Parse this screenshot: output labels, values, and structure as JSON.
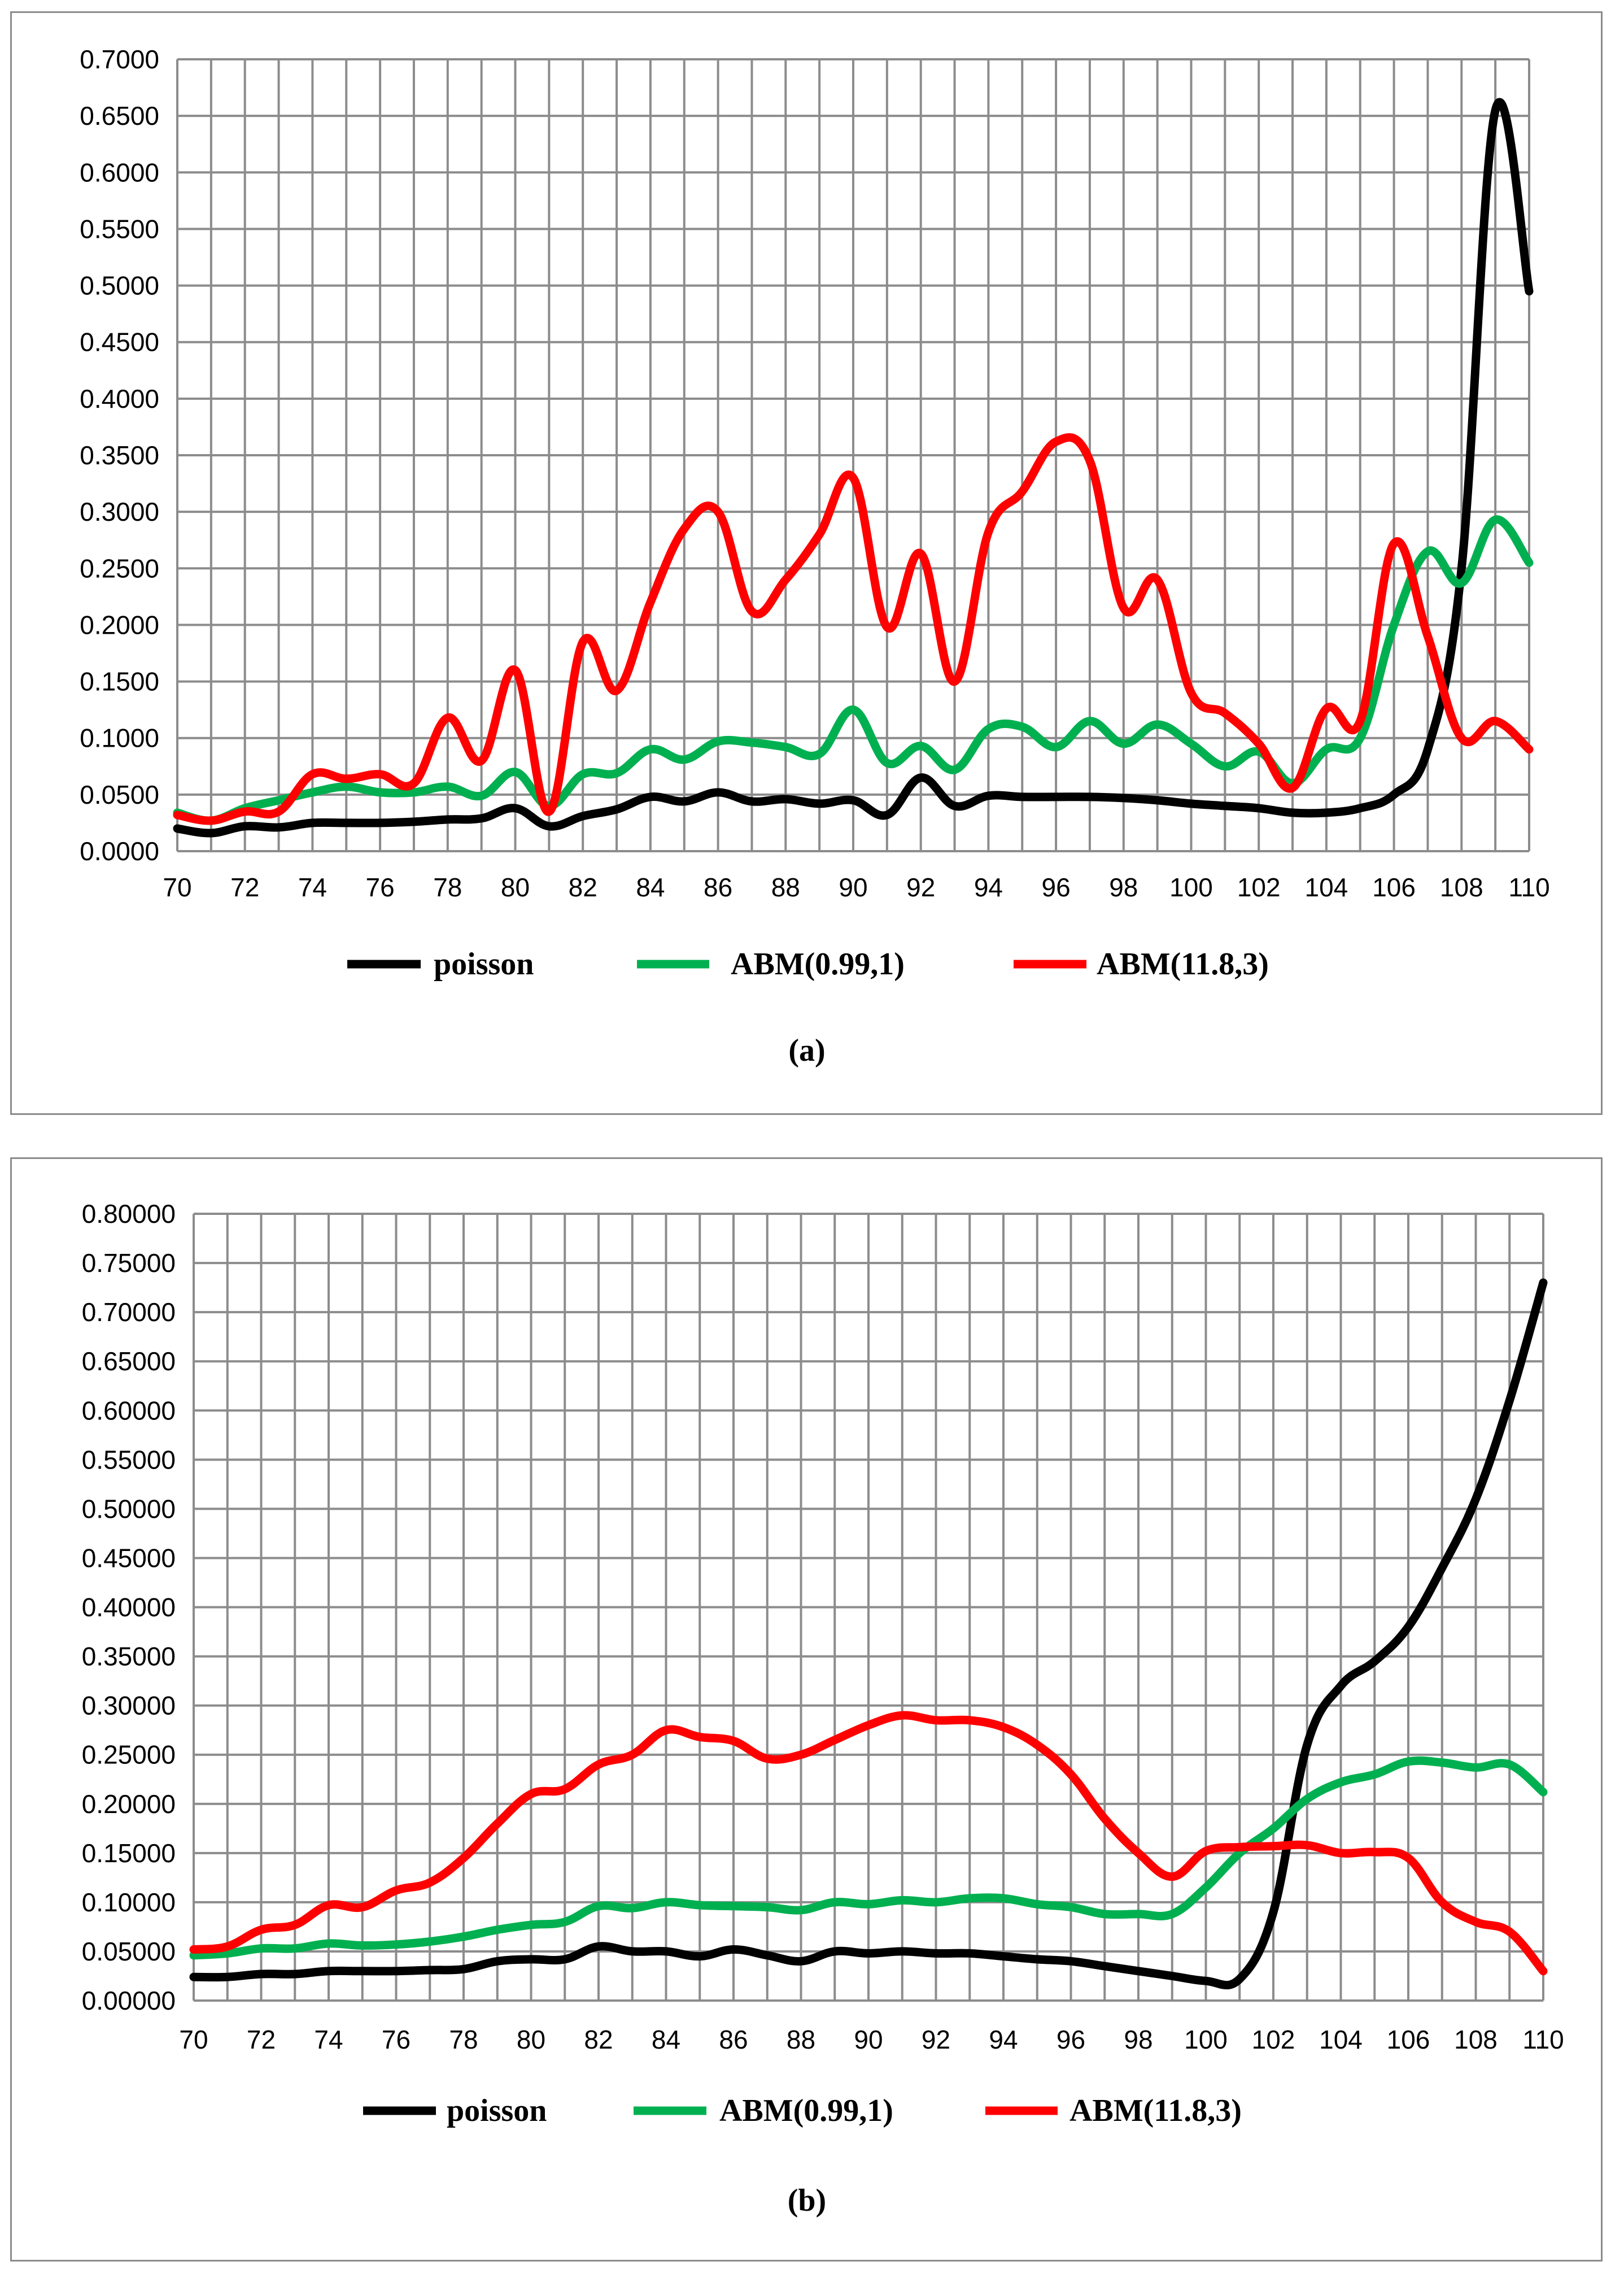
{
  "chart_data": [
    {
      "type": "line",
      "label": "(a)",
      "x": [
        70,
        71,
        72,
        73,
        74,
        75,
        76,
        77,
        78,
        79,
        80,
        81,
        82,
        83,
        84,
        85,
        86,
        87,
        88,
        89,
        90,
        91,
        92,
        93,
        94,
        95,
        96,
        97,
        98,
        99,
        100,
        101,
        102,
        103,
        104,
        105,
        106,
        107,
        108,
        109,
        110
      ],
      "yticks": [
        "0.0000",
        "0.0500",
        "0.1000",
        "0.1500",
        "0.2000",
        "0.2500",
        "0.3000",
        "0.3500",
        "0.4000",
        "0.4500",
        "0.5000",
        "0.5500",
        "0.6000",
        "0.6500",
        "0.7000"
      ],
      "xticks": [
        "70",
        "72",
        "74",
        "76",
        "78",
        "80",
        "82",
        "84",
        "86",
        "88",
        "90",
        "92",
        "94",
        "96",
        "98",
        "100",
        "102",
        "104",
        "106",
        "108",
        "110"
      ],
      "ylim": [
        0,
        0.7
      ],
      "xlim": [
        70,
        110
      ],
      "grid": true,
      "legend_position": "bottom",
      "series": [
        {
          "name": "poisson",
          "color": "#000000",
          "values": [
            0.02,
            0.016,
            0.022,
            0.021,
            0.025,
            0.025,
            0.025,
            0.026,
            0.028,
            0.029,
            0.038,
            0.022,
            0.031,
            0.037,
            0.048,
            0.044,
            0.052,
            0.044,
            0.046,
            0.042,
            0.045,
            0.032,
            0.065,
            0.04,
            0.049,
            0.048,
            0.048,
            0.048,
            0.047,
            0.045,
            0.042,
            0.04,
            0.038,
            0.034,
            0.034,
            0.038,
            0.05,
            0.09,
            0.25,
            0.655,
            0.495
          ]
        },
        {
          "name": "ABM(0.99,1)",
          "color": "#00b050",
          "values": [
            0.034,
            0.027,
            0.038,
            0.045,
            0.052,
            0.057,
            0.052,
            0.052,
            0.057,
            0.049,
            0.07,
            0.04,
            0.068,
            0.069,
            0.09,
            0.081,
            0.097,
            0.096,
            0.092,
            0.086,
            0.125,
            0.078,
            0.093,
            0.072,
            0.108,
            0.11,
            0.092,
            0.115,
            0.095,
            0.112,
            0.095,
            0.075,
            0.088,
            0.06,
            0.09,
            0.1,
            0.2,
            0.265,
            0.237,
            0.293,
            0.255
          ]
        },
        {
          "name": "ABM(11.8,3)",
          "color": "#ff0000",
          "values": [
            0.032,
            0.027,
            0.035,
            0.035,
            0.068,
            0.064,
            0.068,
            0.06,
            0.118,
            0.08,
            0.16,
            0.035,
            0.185,
            0.142,
            0.22,
            0.285,
            0.3,
            0.212,
            0.24,
            0.28,
            0.33,
            0.198,
            0.263,
            0.15,
            0.282,
            0.318,
            0.362,
            0.345,
            0.215,
            0.24,
            0.14,
            0.122,
            0.095,
            0.056,
            0.126,
            0.115,
            0.272,
            0.19,
            0.1,
            0.115,
            0.09
          ]
        }
      ]
    },
    {
      "type": "line",
      "label": "(b)",
      "x": [
        70,
        71,
        72,
        73,
        74,
        75,
        76,
        77,
        78,
        79,
        80,
        81,
        82,
        83,
        84,
        85,
        86,
        87,
        88,
        89,
        90,
        91,
        92,
        93,
        94,
        95,
        96,
        97,
        98,
        99,
        100,
        101,
        102,
        103,
        104,
        105,
        106,
        107,
        108,
        109,
        110
      ],
      "yticks": [
        "0.00000",
        "0.05000",
        "0.10000",
        "0.15000",
        "0.20000",
        "0.25000",
        "0.30000",
        "0.35000",
        "0.40000",
        "0.45000",
        "0.50000",
        "0.55000",
        "0.60000",
        "0.65000",
        "0.70000",
        "0.75000",
        "0.80000"
      ],
      "xticks": [
        "70",
        "72",
        "74",
        "76",
        "78",
        "80",
        "82",
        "84",
        "86",
        "88",
        "90",
        "92",
        "94",
        "96",
        "98",
        "100",
        "102",
        "104",
        "106",
        "108",
        "110"
      ],
      "ylim": [
        0,
        0.8
      ],
      "xlim": [
        70,
        110
      ],
      "grid": true,
      "legend_position": "bottom",
      "series": [
        {
          "name": "poisson",
          "color": "#000000",
          "values": [
            0.024,
            0.024,
            0.027,
            0.027,
            0.03,
            0.03,
            0.03,
            0.031,
            0.032,
            0.04,
            0.042,
            0.042,
            0.055,
            0.05,
            0.05,
            0.045,
            0.052,
            0.046,
            0.04,
            0.05,
            0.048,
            0.05,
            0.048,
            0.048,
            0.045,
            0.042,
            0.04,
            0.035,
            0.03,
            0.025,
            0.02,
            0.022,
            0.09,
            0.26,
            0.32,
            0.345,
            0.38,
            0.44,
            0.51,
            0.61,
            0.73
          ]
        },
        {
          "name": "ABM(0.99,1)",
          "color": "#00b050",
          "values": [
            0.046,
            0.048,
            0.053,
            0.053,
            0.058,
            0.056,
            0.057,
            0.06,
            0.065,
            0.072,
            0.077,
            0.08,
            0.096,
            0.094,
            0.1,
            0.097,
            0.096,
            0.095,
            0.092,
            0.1,
            0.098,
            0.102,
            0.1,
            0.104,
            0.104,
            0.098,
            0.095,
            0.088,
            0.088,
            0.088,
            0.115,
            0.15,
            0.175,
            0.205,
            0.222,
            0.23,
            0.243,
            0.242,
            0.237,
            0.24,
            0.212
          ]
        },
        {
          "name": "ABM(11.8,3)",
          "color": "#ff0000",
          "values": [
            0.052,
            0.055,
            0.072,
            0.077,
            0.097,
            0.095,
            0.112,
            0.12,
            0.145,
            0.18,
            0.21,
            0.215,
            0.24,
            0.25,
            0.275,
            0.268,
            0.264,
            0.246,
            0.25,
            0.265,
            0.28,
            0.29,
            0.285,
            0.285,
            0.278,
            0.26,
            0.23,
            0.185,
            0.15,
            0.126,
            0.152,
            0.156,
            0.157,
            0.158,
            0.15,
            0.151,
            0.145,
            0.1,
            0.08,
            0.07,
            0.03
          ]
        }
      ]
    }
  ]
}
